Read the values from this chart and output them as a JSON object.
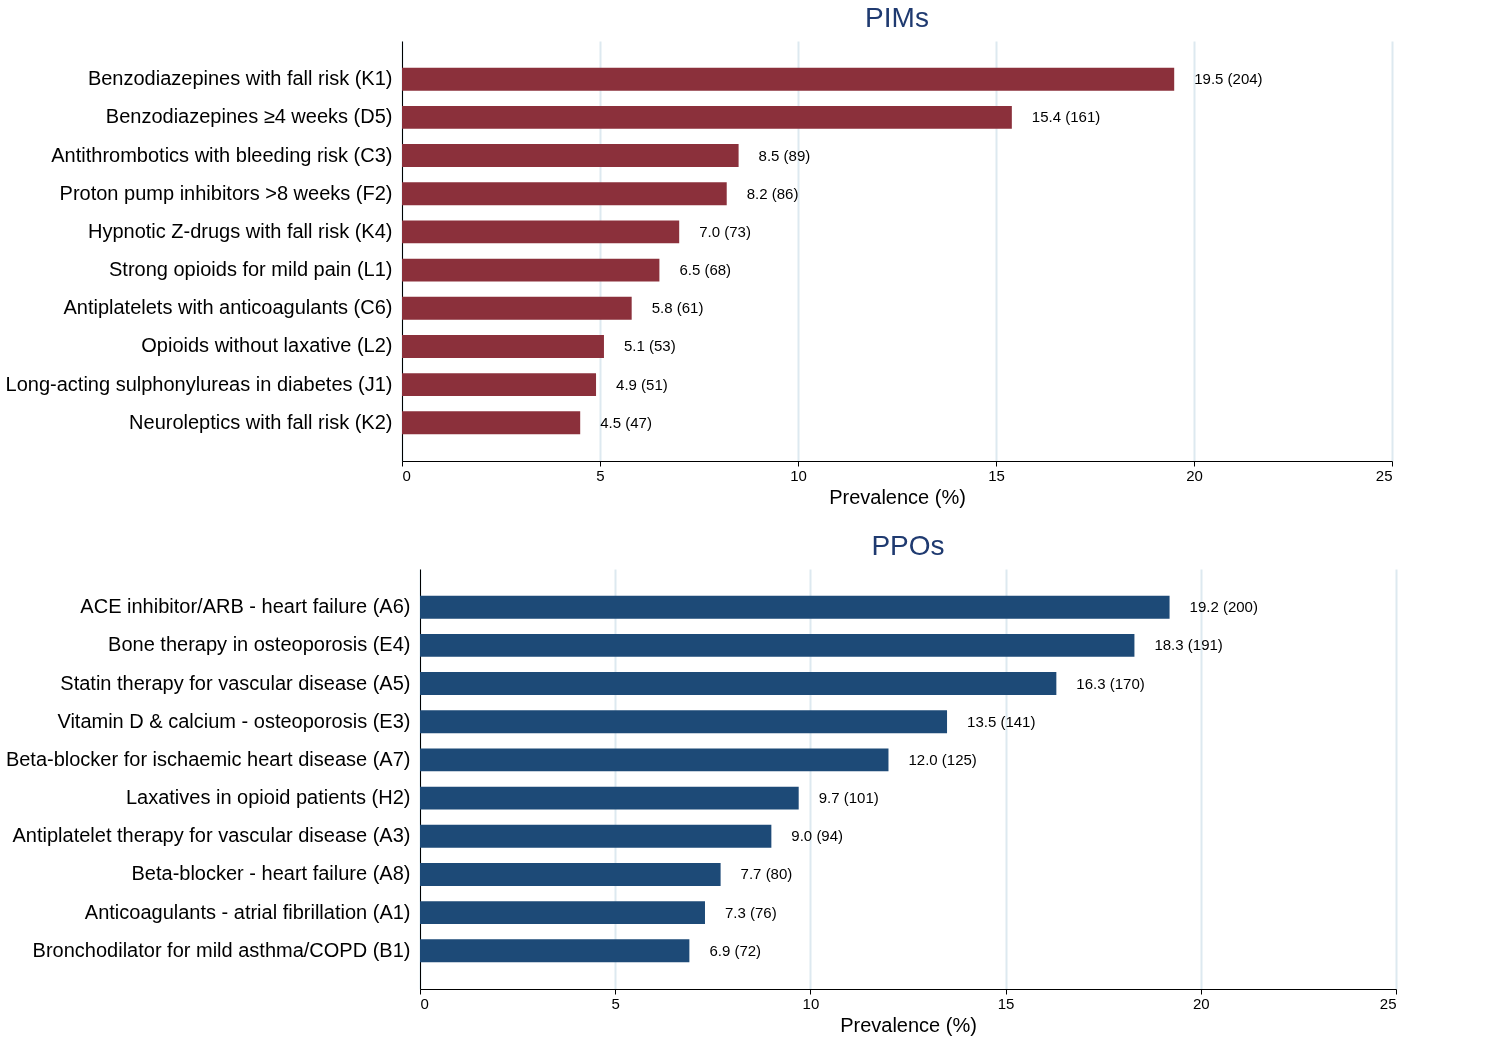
{
  "chart_data": [
    {
      "type": "bar",
      "orientation": "horizontal",
      "title": "PIMs",
      "xlabel": "Prevalence (%)",
      "categories": [
        "Benzodiazepines with fall risk (K1)",
        "Benzodiazepines ≥4 weeks (D5)",
        "Antithrombotics with bleeding risk (C3)",
        "Proton pump inhibitors >8 weeks (F2)",
        "Hypnotic Z-drugs with fall risk (K4)",
        "Strong opioids for mild pain (L1)",
        "Antiplatelets with anticoagulants (C6)",
        "Opioids without laxative (L2)",
        "Long-acting sulphonylureas in diabetes (J1)",
        "Neuroleptics with fall risk (K2)"
      ],
      "values": [
        19.5,
        15.4,
        8.5,
        8.2,
        7.0,
        6.5,
        5.8,
        5.1,
        4.9,
        4.5
      ],
      "value_labels": [
        "19.5 (204)",
        "15.4 (161)",
        "8.5 (89)",
        "8.2 (86)",
        "7.0 (73)",
        "6.5 (68)",
        "5.8 (61)",
        "5.1 (53)",
        "4.9 (51)",
        "4.5 (47)"
      ],
      "color": "#8b303b",
      "xlim": [
        0,
        25
      ],
      "xticks": [
        0,
        5,
        10,
        15,
        20,
        25
      ],
      "grid": "x"
    },
    {
      "type": "bar",
      "orientation": "horizontal",
      "title": "PPOs",
      "xlabel": "Prevalence (%)",
      "categories": [
        "ACE inhibitor/ARB - heart failure (A6)",
        "Bone therapy in osteoporosis (E4)",
        "Statin therapy for vascular disease (A5)",
        "Vitamin D & calcium - osteoporosis (E3)",
        "Beta-blocker for ischaemic heart disease (A7)",
        "Laxatives in opioid patients (H2)",
        "Antiplatelet therapy for vascular disease (A3)",
        "Beta-blocker - heart failure (A8)",
        "Anticoagulants - atrial fibrillation (A1)",
        "Bronchodilator for mild asthma/COPD (B1)"
      ],
      "values": [
        19.2,
        18.3,
        16.3,
        13.5,
        12.0,
        9.7,
        9.0,
        7.7,
        7.3,
        6.9
      ],
      "value_labels": [
        "19.2 (200)",
        "18.3 (191)",
        "16.3 (170)",
        "13.5 (141)",
        "12.0 (125)",
        "9.7 (101)",
        "9.0 (94)",
        "7.7 (80)",
        "7.3 (76)",
        "6.9 (72)"
      ],
      "color": "#1d4a77",
      "xlim": [
        0,
        25
      ],
      "xticks": [
        0,
        5,
        10,
        15,
        20,
        25
      ],
      "grid": "x"
    }
  ]
}
